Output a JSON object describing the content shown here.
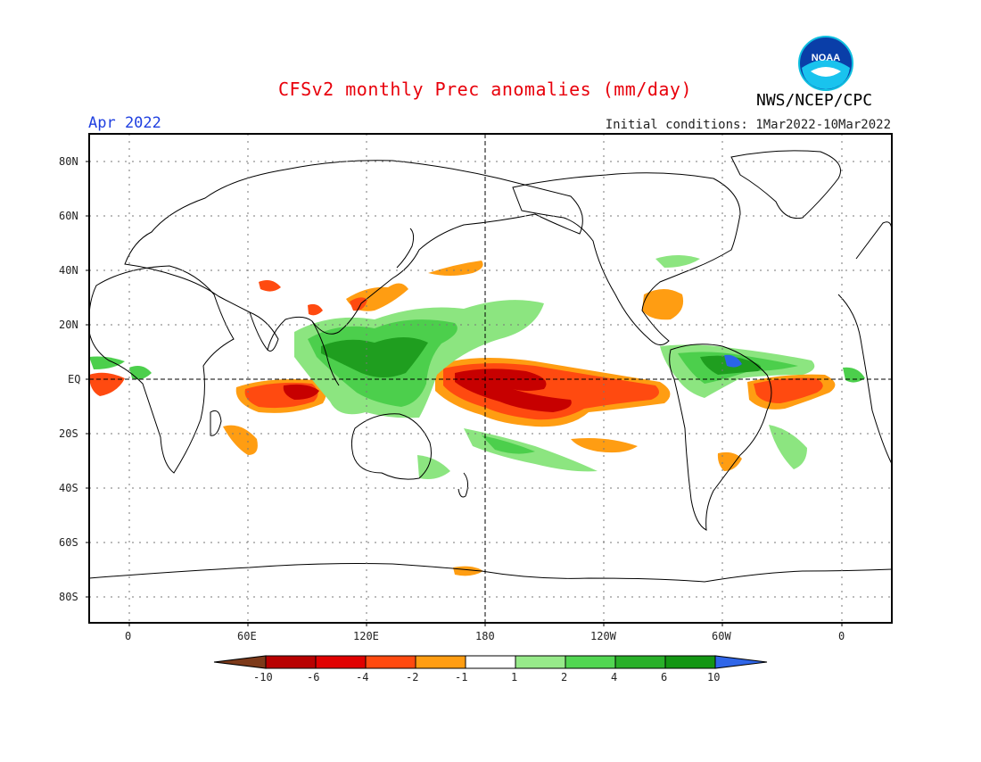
{
  "header": {
    "title": "CFSv2 monthly Prec anomalies (mm/day)",
    "month": "Apr 2022",
    "initial_conditions": "Initial conditions: 1Mar2022-10Mar2022",
    "agency": "NWS/NCEP/CPC",
    "logo_text": "NOAA"
  },
  "map": {
    "lat_labels": [
      "80N",
      "60N",
      "40N",
      "20N",
      "EQ",
      "20S",
      "40S",
      "60S",
      "80S"
    ],
    "lon_labels": [
      "0",
      "60E",
      "120E",
      "180",
      "120W",
      "60W",
      "0"
    ],
    "colors": {
      "dry_strong": "#c70000",
      "dry_mid": "#ff3f0a",
      "dry_weak": "#ff9d12",
      "wet_weak": "#8ce580",
      "wet_mid": "#4ccf4c",
      "wet_strong": "#1f9e1f",
      "wet_extreme": "#2a65e8"
    }
  },
  "legend": {
    "labels": [
      "-10",
      "-6",
      "-4",
      "-2",
      "-1",
      "1",
      "2",
      "4",
      "6",
      "10"
    ],
    "colors": [
      "#7d3a1a",
      "#b80000",
      "#e00000",
      "#ff4a10",
      "#ff9d12",
      "#ffffff",
      "#97ea8a",
      "#52d652",
      "#29b029",
      "#139613",
      "#3066e8"
    ]
  }
}
